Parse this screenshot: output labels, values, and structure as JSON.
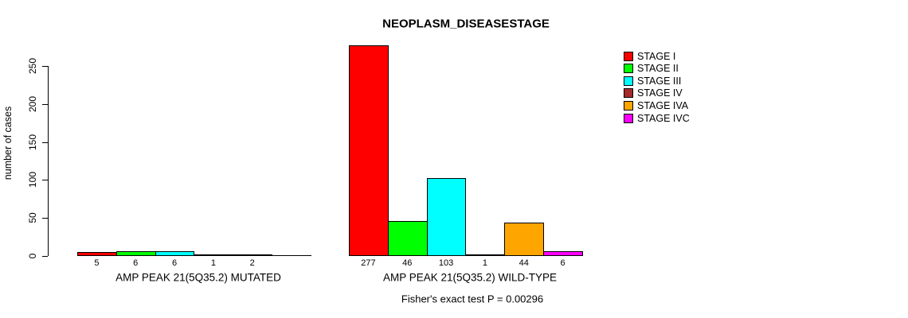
{
  "title": "NEOPLASM_DISEASESTAGE",
  "y_axis_label": "number of cases",
  "footer": "Fisher's exact test P = 0.00296",
  "legend": [
    {
      "label": "STAGE I",
      "color": "#FF0000"
    },
    {
      "label": "STAGE II",
      "color": "#00FF00"
    },
    {
      "label": "STAGE III",
      "color": "#00FFFF"
    },
    {
      "label": "STAGE IV",
      "color": "#A52A2A"
    },
    {
      "label": "STAGE IVA",
      "color": "#FFA500"
    },
    {
      "label": "STAGE IVC",
      "color": "#FF00FF"
    }
  ],
  "chart_data": {
    "type": "bar",
    "title": "NEOPLASM_DISEASESTAGE",
    "ylabel": "number of cases",
    "ylim": [
      0,
      250
    ],
    "yticks": [
      0,
      50,
      100,
      150,
      200,
      250
    ],
    "grid": false,
    "legend_position": "right",
    "categories": [
      "STAGE I",
      "STAGE II",
      "STAGE III",
      "STAGE IV",
      "STAGE IVA",
      "STAGE IVC"
    ],
    "colors": [
      "#FF0000",
      "#00FF00",
      "#00FFFF",
      "#A52A2A",
      "#FFA500",
      "#FF00FF"
    ],
    "groups": [
      {
        "label": "AMP PEAK 21(5Q35.2) MUTATED",
        "values": [
          5,
          6,
          6,
          1,
          2,
          0
        ],
        "bar_labels": [
          "5",
          "6",
          "6",
          "1",
          "2",
          ""
        ]
      },
      {
        "label": "AMP PEAK 21(5Q35.2) WILD-TYPE",
        "values": [
          277,
          46,
          103,
          1,
          44,
          6
        ],
        "bar_labels": [
          "277",
          "46",
          "103",
          "1",
          "44",
          "6"
        ]
      }
    ],
    "annotation": "Fisher's exact test P = 0.00296"
  }
}
